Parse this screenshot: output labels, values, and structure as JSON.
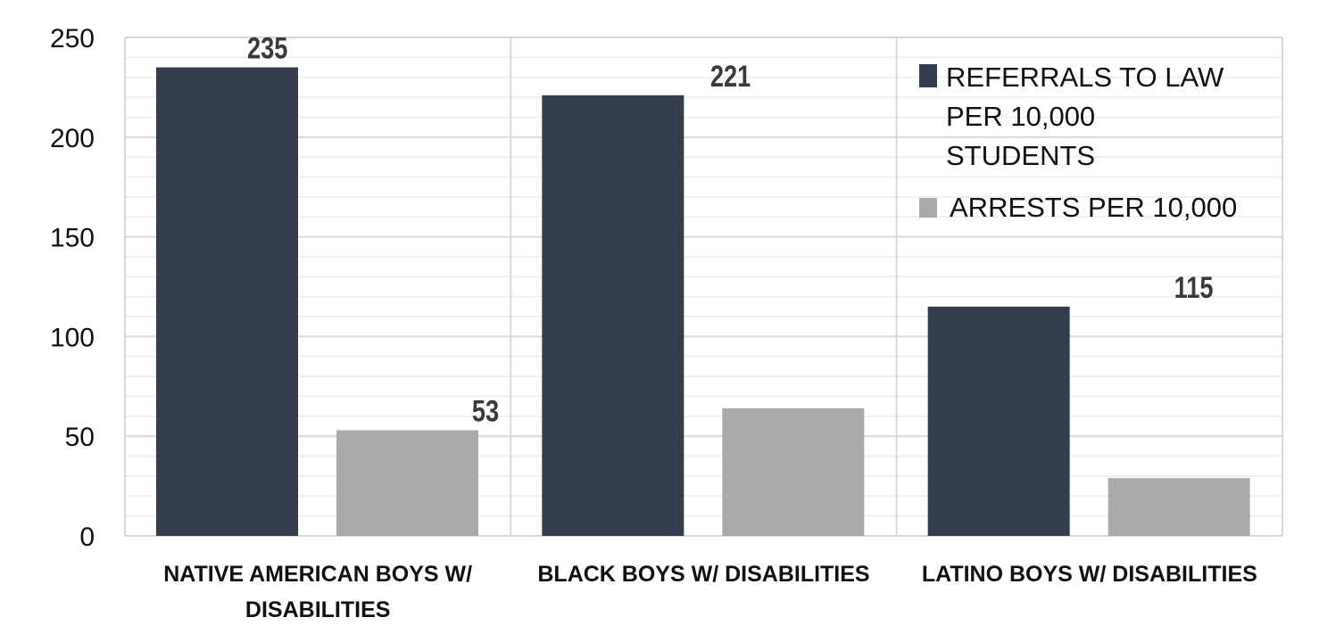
{
  "chart_data": {
    "type": "bar",
    "title": "",
    "xlabel": "",
    "ylabel": "",
    "ylim": [
      0,
      250
    ],
    "yticks": [
      0,
      50,
      100,
      150,
      200,
      250
    ],
    "minor_grid_step": 10,
    "grid": true,
    "legend_placement": "top-right",
    "categories": [
      [
        "NATIVE AMERICAN BOYS W/",
        "DISABILITIES"
      ],
      [
        "BLACK BOYS W/ DISABILITIES"
      ],
      [
        "LATINO BOYS W/ DISABILITIES"
      ]
    ],
    "series": [
      {
        "name": [
          "REFERRALS TO LAW",
          "PER 10,000",
          "STUDENTS"
        ],
        "values": [
          235,
          221,
          115
        ],
        "color": "#343d4c"
      },
      {
        "name": [
          "ARRESTS PER 10,000"
        ],
        "values": [
          53,
          64,
          29
        ],
        "color": "#aaaaaa"
      }
    ]
  }
}
